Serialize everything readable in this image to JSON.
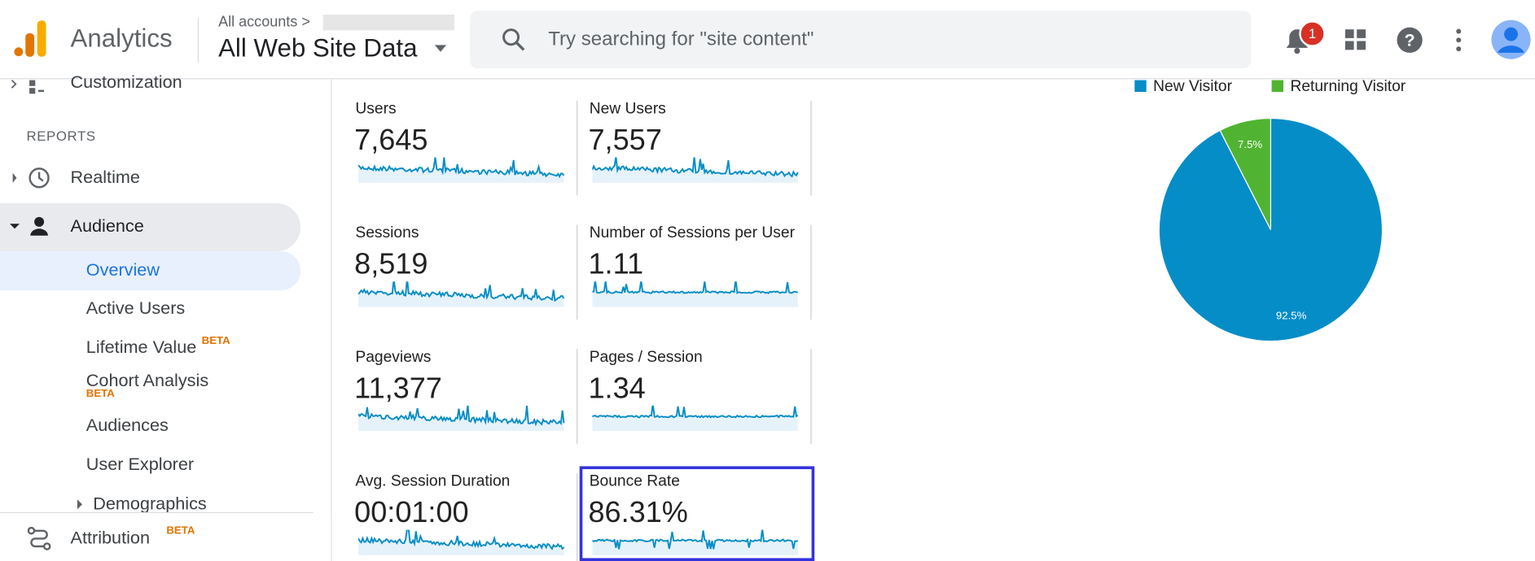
{
  "header": {
    "product": "Analytics",
    "breadcrumb": "All accounts",
    "view": "All Web Site Data",
    "search_placeholder": "Try searching for \"site content\"",
    "notification_count": "1"
  },
  "sidebar": {
    "partial_item": "Customization",
    "section": "REPORTS",
    "items": [
      {
        "label": "Realtime"
      },
      {
        "label": "Audience"
      }
    ],
    "audience_items": [
      {
        "label": "Overview"
      },
      {
        "label": "Active Users"
      },
      {
        "label": "Lifetime Value",
        "badge": "BETA"
      },
      {
        "label": "Cohort Analysis",
        "badge": "BETA"
      },
      {
        "label": "Audiences"
      },
      {
        "label": "User Explorer"
      },
      {
        "label": "Demographics"
      }
    ],
    "bottom_item": {
      "label": "Attribution",
      "badge": "BETA"
    }
  },
  "metrics": [
    {
      "label": "Users",
      "value": "7,645"
    },
    {
      "label": "New Users",
      "value": "7,557"
    },
    {
      "label": "Sessions",
      "value": "8,519"
    },
    {
      "label": "Number of Sessions per User",
      "value": "1.11"
    },
    {
      "label": "Pageviews",
      "value": "11,377"
    },
    {
      "label": "Pages / Session",
      "value": "1.34"
    },
    {
      "label": "Avg. Session Duration",
      "value": "00:01:00"
    },
    {
      "label": "Bounce Rate",
      "value": "86.31%"
    }
  ],
  "chart_data": {
    "type": "pie",
    "categories": [
      "New Visitor",
      "Returning Visitor"
    ],
    "values": [
      92.5,
      7.5
    ],
    "value_labels": [
      "92.5%",
      "7.5%"
    ],
    "colors": [
      "#058dc7",
      "#50b432"
    ]
  }
}
